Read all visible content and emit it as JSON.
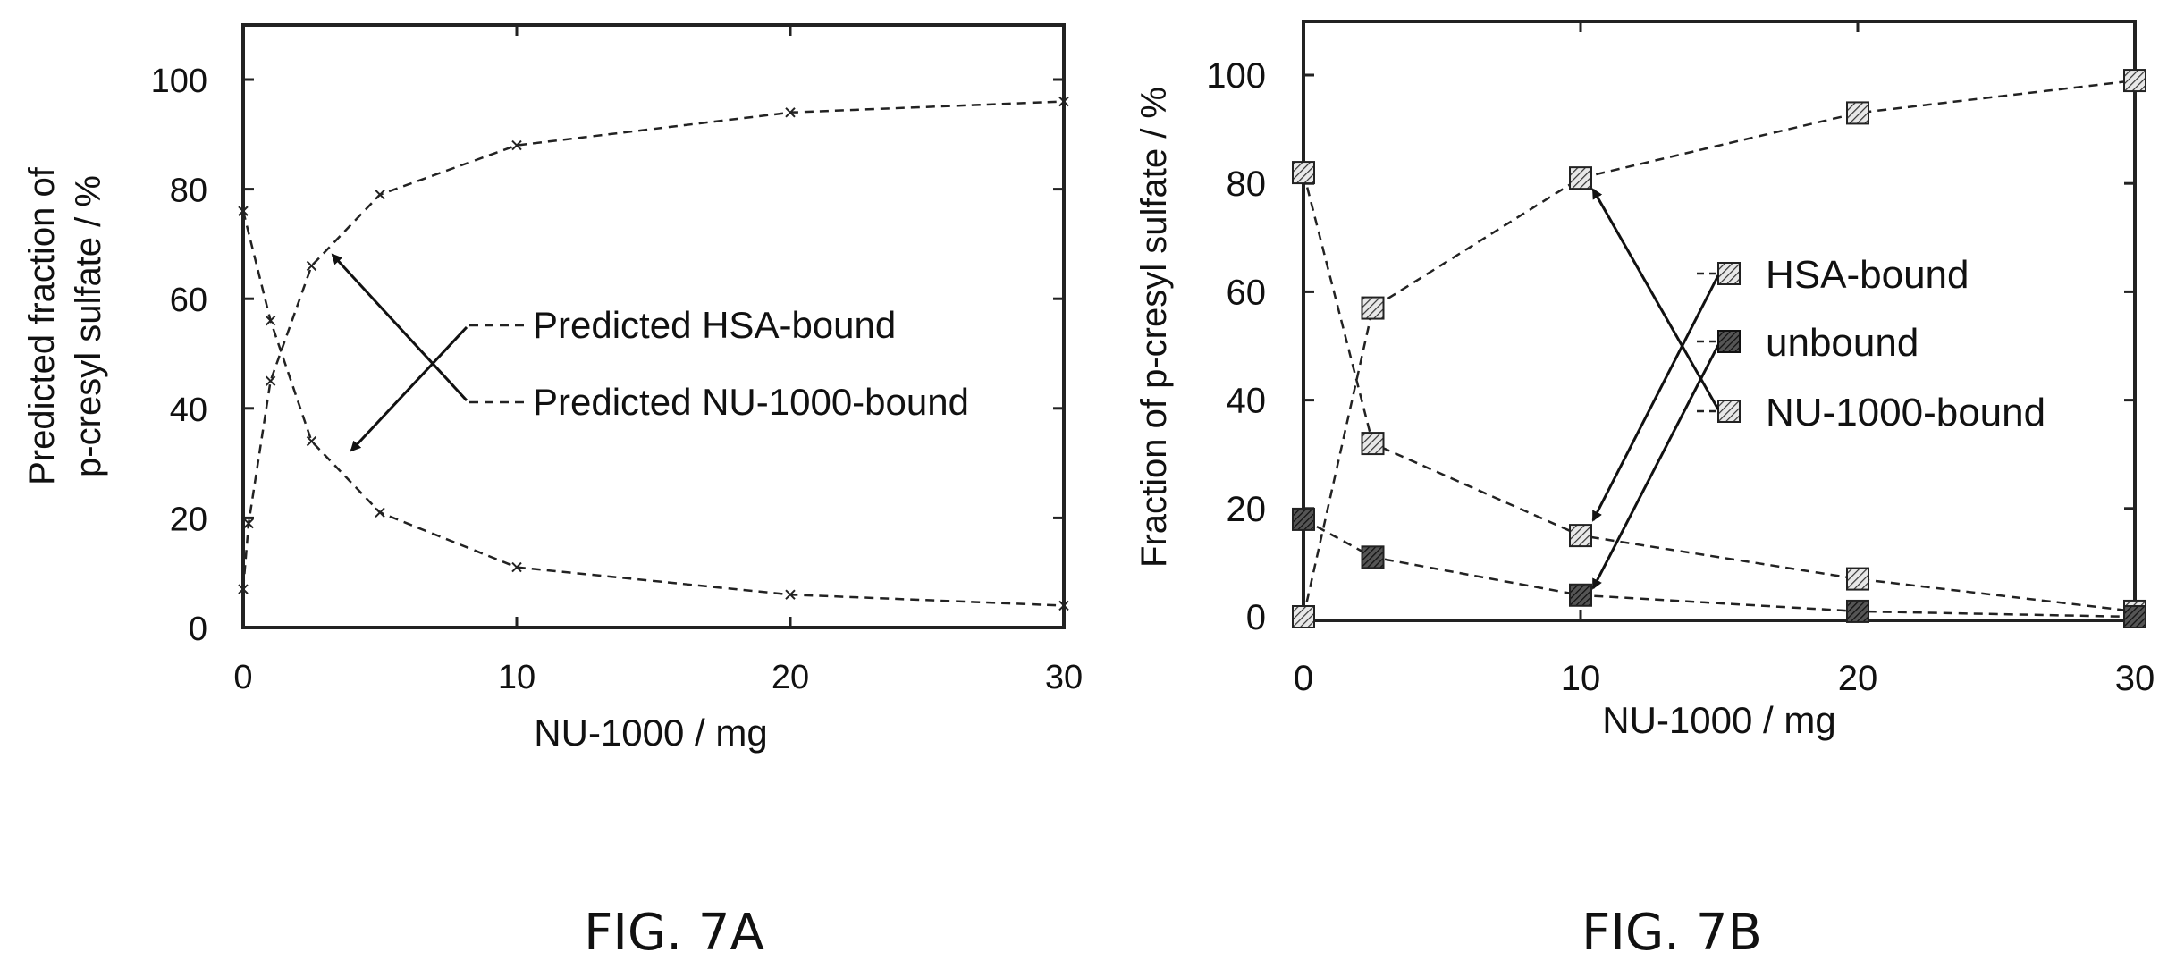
{
  "chart_data": [
    {
      "type": "line",
      "caption": "FIG. 7A",
      "xlabel": "NU-1000 / mg",
      "ylabel_lines": [
        "Predicted fraction of",
        "p-cresyl sulfate / %"
      ],
      "xlim": [
        0,
        30
      ],
      "ylim": [
        0,
        110
      ],
      "xticks": [
        "0",
        "10",
        "20",
        "30"
      ],
      "yticks": [
        "0",
        "20",
        "40",
        "60",
        "80",
        "100"
      ],
      "grid": false,
      "legend_position": "center-right",
      "series": [
        {
          "name": "Predicted HSA-bound",
          "x": [
            0,
            1,
            2.5,
            5,
            10,
            20,
            30
          ],
          "y": [
            76,
            56,
            34,
            21,
            11,
            6,
            4
          ]
        },
        {
          "name": "Predicted NU-1000-bound",
          "x": [
            0,
            0.2,
            1,
            2.5,
            5,
            10,
            20,
            30
          ],
          "y": [
            7,
            19,
            45,
            66,
            79,
            88,
            94,
            96
          ]
        }
      ]
    },
    {
      "type": "line",
      "caption": "FIG. 7B",
      "xlabel": "NU-1000 / mg",
      "ylabel_lines": [
        "Fraction of p-cresyl sulfate / %"
      ],
      "xlim": [
        0,
        30
      ],
      "ylim": [
        0,
        110
      ],
      "xticks": [
        "0",
        "10",
        "20",
        "30"
      ],
      "yticks": [
        "0",
        "20",
        "40",
        "60",
        "80",
        "100"
      ],
      "grid": false,
      "legend_position": "center-right",
      "series": [
        {
          "name": "HSA-bound",
          "x": [
            0,
            2.5,
            10,
            20,
            30
          ],
          "y": [
            82,
            32,
            15,
            7,
            1
          ]
        },
        {
          "name": "unbound",
          "x": [
            0,
            2.5,
            10,
            20,
            30
          ],
          "y": [
            18,
            11,
            4,
            1,
            0
          ]
        },
        {
          "name": "NU-1000-bound",
          "x": [
            0,
            2.5,
            10,
            20,
            30
          ],
          "y": [
            0,
            57,
            81,
            93,
            99
          ]
        }
      ]
    }
  ]
}
